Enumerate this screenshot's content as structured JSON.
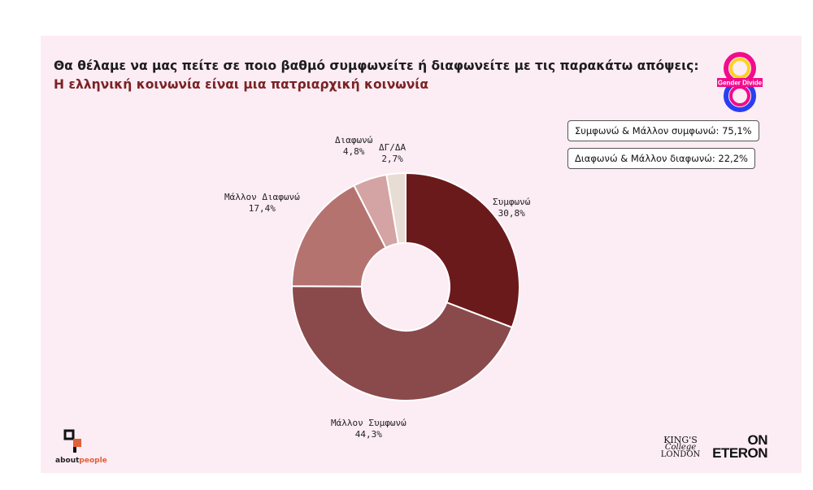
{
  "title": "Θα θέλαμε να μας πείτε σε ποιο βαθμό συμφωνείτε ή διαφωνείτε με τις παρακάτω απόψεις:",
  "subtitle": "Η ελληνική κοινωνία είναι μια πατριαρχική κοινωνία",
  "summary": [
    "Συμφωνώ & Μάλλον συμφωνώ: 75,1%",
    "Διαφωνώ & Μάλλον διαφωνώ: 22,2%"
  ],
  "logos": {
    "gender_divide": "Gender Divide",
    "aboutpeople_a": "about",
    "aboutpeople_b": "people",
    "kings_1": "KING'S",
    "kings_2": "College",
    "kings_3": "LONDON",
    "eteron_1": "ON",
    "eteron_2": "ETERON"
  },
  "chart_data": {
    "type": "pie",
    "donut": true,
    "slices": [
      {
        "name": "Συμφωνώ",
        "value": 30.8,
        "label": "30,8%",
        "color": "#6b1a1c"
      },
      {
        "name": "Μάλλον Συμφωνώ",
        "value": 44.3,
        "label": "44,3%",
        "color": "#8a4a4c"
      },
      {
        "name": "Μάλλον Διαφωνώ",
        "value": 17.4,
        "label": "17,4%",
        "color": "#b57370"
      },
      {
        "name": "Διαφωνώ",
        "value": 4.8,
        "label": "4,8%",
        "color": "#d4a3a4"
      },
      {
        "name": "ΔΓ/ΔΑ",
        "value": 2.7,
        "label": "2,7%",
        "color": "#e8ddd4"
      }
    ]
  }
}
